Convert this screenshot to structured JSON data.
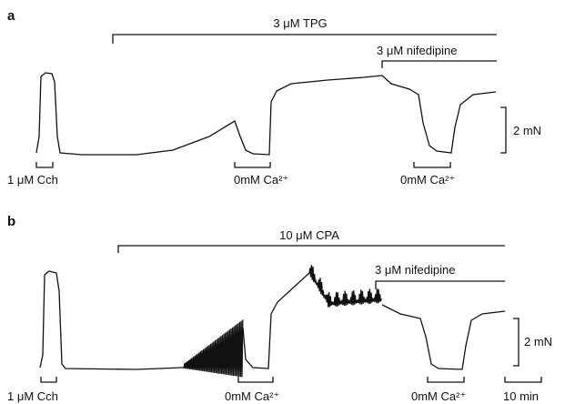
{
  "panels": [
    {
      "label": "a",
      "drug": "3 μM TPG",
      "blocker": "3 μM nifedipine",
      "scale": "2 mN",
      "stimulus": "1 μM Cch",
      "calcium_free": [
        "0mM Ca²⁺",
        "0mM Ca²⁺"
      ]
    },
    {
      "label": "b",
      "drug": "10 μM CPA",
      "blocker": "3 μM nifedipine",
      "scale": "2 mN",
      "stimulus": "1 μM Cch",
      "calcium_free": [
        "0mM Ca²⁺",
        "0mM Ca²⁺"
      ],
      "time_scale": "10 min"
    }
  ]
}
